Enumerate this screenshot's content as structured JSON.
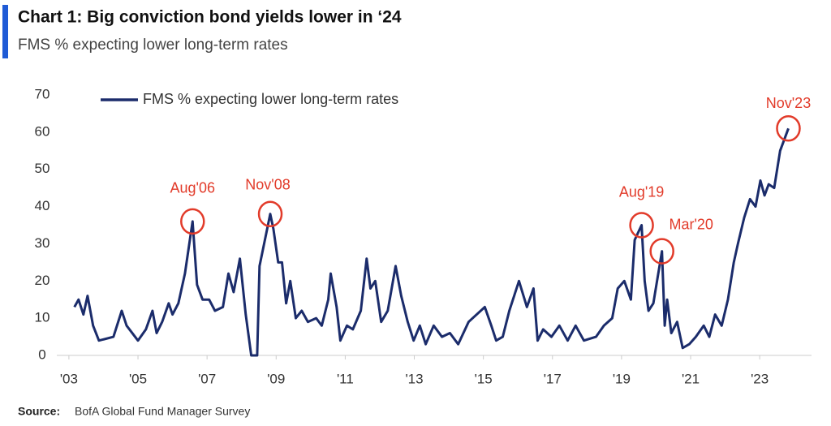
{
  "chart_data": {
    "type": "line",
    "title": "Chart 1: Big conviction bond yields lower in ‘24",
    "subtitle": "FMS % expecting lower long-term rates",
    "source_label": "Source:",
    "source": "BofA Global Fund Manager Survey",
    "xlim": [
      2002.65,
      2024.5
    ],
    "xticks": [
      {
        "value": 2003,
        "label": "'03"
      },
      {
        "value": 2005,
        "label": "'05"
      },
      {
        "value": 2007,
        "label": "'07"
      },
      {
        "value": 2009,
        "label": "'09"
      },
      {
        "value": 2011,
        "label": "'11"
      },
      {
        "value": 2013,
        "label": "'13"
      },
      {
        "value": 2015,
        "label": "'15"
      },
      {
        "value": 2017,
        "label": "'17"
      },
      {
        "value": 2019,
        "label": "'19"
      },
      {
        "value": 2021,
        "label": "'21"
      },
      {
        "value": 2023,
        "label": "'23"
      }
    ],
    "ylim": [
      0,
      70
    ],
    "yticks": [
      0,
      10,
      20,
      30,
      40,
      50,
      60,
      70
    ],
    "legend": "top-left",
    "x": [
      2003.16,
      2003.28,
      2003.42,
      2003.54,
      2003.7,
      2003.87,
      2004.29,
      2004.53,
      2004.67,
      2005.0,
      2005.23,
      2005.42,
      2005.54,
      2005.7,
      2005.89,
      2006.0,
      2006.17,
      2006.36,
      2006.58,
      2006.71,
      2006.87,
      2007.06,
      2007.23,
      2007.46,
      2007.62,
      2007.77,
      2007.95,
      2008.12,
      2008.28,
      2008.45,
      2008.52,
      2008.83,
      2008.92,
      2009.06,
      2009.17,
      2009.29,
      2009.41,
      2009.57,
      2009.74,
      2009.92,
      2010.16,
      2010.32,
      2010.51,
      2010.58,
      2010.75,
      2010.86,
      2011.05,
      2011.22,
      2011.45,
      2011.62,
      2011.73,
      2011.87,
      2012.04,
      2012.23,
      2012.46,
      2012.62,
      2012.81,
      2012.98,
      2013.16,
      2013.33,
      2013.56,
      2013.8,
      2014.03,
      2014.27,
      2014.57,
      2015.04,
      2015.23,
      2015.37,
      2015.56,
      2015.75,
      2016.03,
      2016.26,
      2016.45,
      2016.57,
      2016.73,
      2016.97,
      2017.2,
      2017.44,
      2017.67,
      2017.91,
      2018.26,
      2018.49,
      2018.73,
      2018.89,
      2019.08,
      2019.27,
      2019.38,
      2019.58,
      2019.67,
      2019.78,
      2019.92,
      2020.17,
      2020.25,
      2020.32,
      2020.44,
      2020.61,
      2020.77,
      2020.96,
      2021.15,
      2021.38,
      2021.54,
      2021.71,
      2021.9,
      2022.08,
      2022.25,
      2022.37,
      2022.55,
      2022.72,
      2022.88,
      2023.02,
      2023.14,
      2023.26,
      2023.42,
      2023.59,
      2023.83
    ],
    "series": [
      {
        "name": "FMS % expecting lower long-term rates",
        "color": "#1b2c6b",
        "values": [
          13,
          15,
          11,
          16,
          8,
          4,
          5,
          12,
          8,
          4,
          7,
          12,
          6,
          9,
          14,
          11,
          14,
          22,
          36,
          19,
          15,
          15,
          12,
          13,
          22,
          17,
          26,
          11,
          0,
          0,
          24,
          38,
          34,
          25,
          25,
          14,
          20,
          10,
          12,
          9,
          10,
          8,
          15,
          22,
          13,
          4,
          8,
          7,
          12,
          26,
          18,
          20,
          9,
          12,
          24,
          16,
          9,
          4,
          8,
          3,
          8,
          5,
          6,
          3,
          9,
          13,
          8,
          4,
          5,
          12,
          20,
          13,
          18,
          4,
          7,
          5,
          8,
          4,
          8,
          4,
          5,
          8,
          10,
          18,
          20,
          15,
          31,
          35,
          20,
          12,
          14,
          28,
          8,
          15,
          6,
          9,
          2,
          3,
          5,
          8,
          5,
          11,
          8,
          15,
          25,
          30,
          37,
          42,
          40,
          47,
          43,
          46,
          45,
          55,
          61
        ]
      }
    ],
    "annotations": [
      {
        "text": "Aug'06",
        "x": 2006.58,
        "y": 36
      },
      {
        "text": "Nov'08",
        "x": 2008.83,
        "y": 38
      },
      {
        "text": "Aug'19",
        "x": 2019.58,
        "y": 35
      },
      {
        "text": "Mar'20",
        "x": 2020.17,
        "y": 28
      },
      {
        "text": "Nov'23",
        "x": 2023.83,
        "y": 61
      }
    ],
    "annotation_color": "#e23b2a"
  }
}
